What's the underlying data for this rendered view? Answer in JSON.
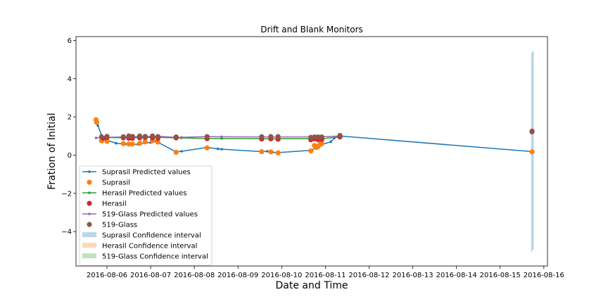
{
  "chart_data": {
    "type": "line",
    "title": "Drift and Blank Monitors",
    "xlabel": "Date and Time",
    "ylabel": "Fration of Initial",
    "x_ticks": [
      "2016-08-06",
      "2016-08-07",
      "2016-08-08",
      "2016-08-09",
      "2016-08-10",
      "2016-08-11",
      "2016-08-12",
      "2016-08-13",
      "2016-08-14",
      "2016-08-15",
      "2016-08-16"
    ],
    "y_ticks": [
      "-4",
      "-2",
      "0",
      "2",
      "4",
      "6"
    ],
    "xlim": [
      "2016-08-05T07:00",
      "2016-08-16T02:00"
    ],
    "ylim": [
      -5.8,
      6.2
    ],
    "grid": false,
    "legend_position": "lower-left",
    "series": [
      {
        "name": "Suprasil Predicted values",
        "kind": "line",
        "color": "#1f77b4",
        "points": [
          [
            "2016-08-05T18:00",
            1.85
          ],
          [
            "2016-08-05T19:00",
            1.55
          ],
          [
            "2016-08-05T21:00",
            1.05
          ],
          [
            "2016-08-05T22:00",
            0.85
          ],
          [
            "2016-08-06T05:00",
            0.62
          ],
          [
            "2016-08-06T10:00",
            0.58
          ],
          [
            "2016-08-06T13:00",
            0.56
          ],
          [
            "2016-08-06T17:00",
            0.57
          ],
          [
            "2016-08-06T21:00",
            0.63
          ],
          [
            "2016-08-07T00:00",
            0.66
          ],
          [
            "2016-08-07T03:00",
            0.72
          ],
          [
            "2016-08-07T14:00",
            0.17
          ],
          [
            "2016-08-07T17:00",
            0.2
          ],
          [
            "2016-08-08T07:00",
            0.4
          ],
          [
            "2016-08-08T13:00",
            0.33
          ],
          [
            "2016-08-08T15:00",
            0.31
          ],
          [
            "2016-08-09T13:00",
            0.18
          ],
          [
            "2016-08-09T16:00",
            0.2
          ],
          [
            "2016-08-09T19:00",
            0.15
          ],
          [
            "2016-08-09T22:00",
            0.13
          ],
          [
            "2016-08-10T16:00",
            0.25
          ],
          [
            "2016-08-10T22:00",
            0.55
          ],
          [
            "2016-08-11T03:00",
            0.7
          ],
          [
            "2016-08-11T05:00",
            0.9
          ],
          [
            "2016-08-11T08:00",
            1.0
          ],
          [
            "2016-08-15T18:00",
            0.18
          ]
        ]
      },
      {
        "name": "Suprasil",
        "kind": "scatter",
        "color": "#ff7f0e",
        "points": [
          [
            "2016-08-05T18:00",
            1.85
          ],
          [
            "2016-08-05T18:20",
            1.72
          ],
          [
            "2016-08-05T21:00",
            0.75
          ],
          [
            "2016-08-06T00:00",
            0.72
          ],
          [
            "2016-08-06T09:00",
            0.6
          ],
          [
            "2016-08-06T12:00",
            0.58
          ],
          [
            "2016-08-06T14:00",
            0.58
          ],
          [
            "2016-08-06T18:00",
            0.62
          ],
          [
            "2016-08-06T21:00",
            0.7
          ],
          [
            "2016-08-07T01:00",
            0.75
          ],
          [
            "2016-08-07T04:00",
            0.68
          ],
          [
            "2016-08-07T14:00",
            0.15
          ],
          [
            "2016-08-08T07:00",
            0.38
          ],
          [
            "2016-08-09T13:00",
            0.18
          ],
          [
            "2016-08-09T18:00",
            0.17
          ],
          [
            "2016-08-09T22:00",
            0.12
          ],
          [
            "2016-08-10T16:00",
            0.22
          ],
          [
            "2016-08-10T18:00",
            0.5
          ],
          [
            "2016-08-10T19:00",
            0.4
          ],
          [
            "2016-08-10T20:00",
            0.45
          ],
          [
            "2016-08-10T21:00",
            0.55
          ],
          [
            "2016-08-10T22:00",
            0.6
          ],
          [
            "2016-08-15T17:30",
            0.17
          ]
        ]
      },
      {
        "name": "Herasil Predicted values",
        "kind": "line",
        "color": "#2ca02c",
        "points": [
          [
            "2016-08-05T22:00",
            0.9
          ],
          [
            "2016-08-06T00:00",
            0.92
          ],
          [
            "2016-08-06T09:00",
            0.91
          ],
          [
            "2016-08-06T17:00",
            0.92
          ],
          [
            "2016-08-07T04:00",
            0.93
          ],
          [
            "2016-08-07T14:00",
            0.9
          ],
          [
            "2016-08-07T17:00",
            0.9
          ],
          [
            "2016-08-08T07:00",
            0.87
          ],
          [
            "2016-08-08T15:00",
            0.87
          ],
          [
            "2016-08-09T13:00",
            0.86
          ],
          [
            "2016-08-09T22:00",
            0.86
          ],
          [
            "2016-08-10T16:00",
            0.86
          ],
          [
            "2016-08-10T22:00",
            0.86
          ],
          [
            "2016-08-11T08:00",
            0.95
          ]
        ]
      },
      {
        "name": "Herasil",
        "kind": "scatter",
        "color": "#d62728",
        "points": [
          [
            "2016-08-05T22:00",
            0.88
          ],
          [
            "2016-08-06T00:00",
            0.92
          ],
          [
            "2016-08-06T09:00",
            0.9
          ],
          [
            "2016-08-06T12:00",
            0.88
          ],
          [
            "2016-08-06T14:00",
            0.88
          ],
          [
            "2016-08-06T18:00",
            0.9
          ],
          [
            "2016-08-06T21:00",
            0.92
          ],
          [
            "2016-08-07T01:00",
            0.9
          ],
          [
            "2016-08-07T04:00",
            0.88
          ],
          [
            "2016-08-07T14:00",
            0.9
          ],
          [
            "2016-08-08T07:00",
            0.86
          ],
          [
            "2016-08-09T13:00",
            0.84
          ],
          [
            "2016-08-09T18:00",
            0.85
          ],
          [
            "2016-08-09T22:00",
            0.83
          ],
          [
            "2016-08-10T16:00",
            0.8
          ],
          [
            "2016-08-10T18:00",
            0.85
          ],
          [
            "2016-08-10T20:00",
            0.8
          ],
          [
            "2016-08-10T22:00",
            0.82
          ],
          [
            "2016-08-11T08:00",
            0.95
          ],
          [
            "2016-08-15T17:30",
            1.25
          ]
        ]
      },
      {
        "name": "519-Glass Predicted values",
        "kind": "line",
        "color": "#9467bd",
        "points": [
          [
            "2016-08-05T18:00",
            0.9
          ],
          [
            "2016-08-06T00:00",
            0.93
          ],
          [
            "2016-08-06T09:00",
            0.95
          ],
          [
            "2016-08-06T17:00",
            0.97
          ],
          [
            "2016-08-07T04:00",
            0.98
          ],
          [
            "2016-08-07T14:00",
            0.93
          ],
          [
            "2016-08-07T17:00",
            0.93
          ],
          [
            "2016-08-08T07:00",
            0.97
          ],
          [
            "2016-08-08T15:00",
            0.96
          ],
          [
            "2016-08-09T13:00",
            0.95
          ],
          [
            "2016-08-09T22:00",
            0.95
          ],
          [
            "2016-08-10T16:00",
            0.95
          ],
          [
            "2016-08-10T22:00",
            0.96
          ],
          [
            "2016-08-11T08:00",
            1.0
          ]
        ]
      },
      {
        "name": "519-Glass",
        "kind": "scatter",
        "color": "#8c564b",
        "points": [
          [
            "2016-08-05T21:00",
            0.95
          ],
          [
            "2016-08-06T00:00",
            0.98
          ],
          [
            "2016-08-06T09:00",
            0.96
          ],
          [
            "2016-08-06T12:00",
            1.0
          ],
          [
            "2016-08-06T14:00",
            0.98
          ],
          [
            "2016-08-06T18:00",
            1.0
          ],
          [
            "2016-08-06T21:00",
            0.98
          ],
          [
            "2016-08-07T01:00",
            1.0
          ],
          [
            "2016-08-07T04:00",
            0.97
          ],
          [
            "2016-08-07T14:00",
            0.95
          ],
          [
            "2016-08-08T07:00",
            0.97
          ],
          [
            "2016-08-09T13:00",
            0.96
          ],
          [
            "2016-08-09T18:00",
            0.97
          ],
          [
            "2016-08-09T22:00",
            0.97
          ],
          [
            "2016-08-10T16:00",
            0.93
          ],
          [
            "2016-08-10T18:00",
            0.95
          ],
          [
            "2016-08-10T20:00",
            0.95
          ],
          [
            "2016-08-10T22:00",
            0.95
          ],
          [
            "2016-08-11T08:00",
            1.03
          ],
          [
            "2016-08-15T17:30",
            1.22
          ]
        ]
      },
      {
        "name": "Suprasil Confidence interval",
        "kind": "band",
        "color": "#1f77b4",
        "band": [
          [
            "2016-08-15T17:00",
            -5.1,
            5.3
          ],
          [
            "2016-08-15T18:30",
            -4.9,
            5.5
          ]
        ]
      },
      {
        "name": "Herasil Confidence interval",
        "kind": "band",
        "color": "#ff7f0e",
        "band": [
          [
            "2016-08-15T17:30",
            1.1,
            1.45
          ],
          [
            "2016-08-15T18:00",
            1.1,
            1.45
          ]
        ]
      },
      {
        "name": "519-Glass Confidence interval",
        "kind": "band",
        "color": "#2ca02c",
        "band": [
          [
            "2016-08-15T17:30",
            1.15,
            1.3
          ],
          [
            "2016-08-15T18:00",
            1.15,
            1.3
          ]
        ]
      }
    ]
  }
}
